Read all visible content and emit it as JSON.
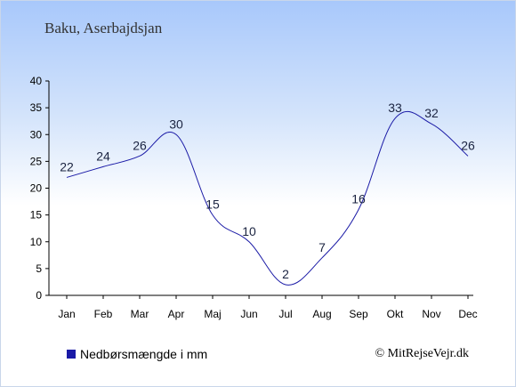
{
  "header": {
    "title": "Baku, Aserbajdsjan"
  },
  "legend": {
    "label": "Nedbørsmængde i mm",
    "color": "#1a1aa6"
  },
  "credit": {
    "text": "© MitRejseVejr.dk"
  },
  "chart_data": {
    "type": "line",
    "categories": [
      "Jan",
      "Feb",
      "Mar",
      "Apr",
      "Maj",
      "Jun",
      "Jul",
      "Aug",
      "Sep",
      "Okt",
      "Nov",
      "Dec"
    ],
    "series": [
      {
        "name": "Nedbørsmængde i mm",
        "values": [
          22,
          24,
          26,
          30,
          15,
          10,
          2,
          7,
          16,
          33,
          32,
          26
        ],
        "color": "#1a1aa6"
      }
    ],
    "ylim": [
      0,
      40
    ],
    "yticks": [
      0,
      5,
      10,
      15,
      20,
      25,
      30,
      35,
      40
    ],
    "grid": false,
    "legend_position": "bottom-left"
  }
}
